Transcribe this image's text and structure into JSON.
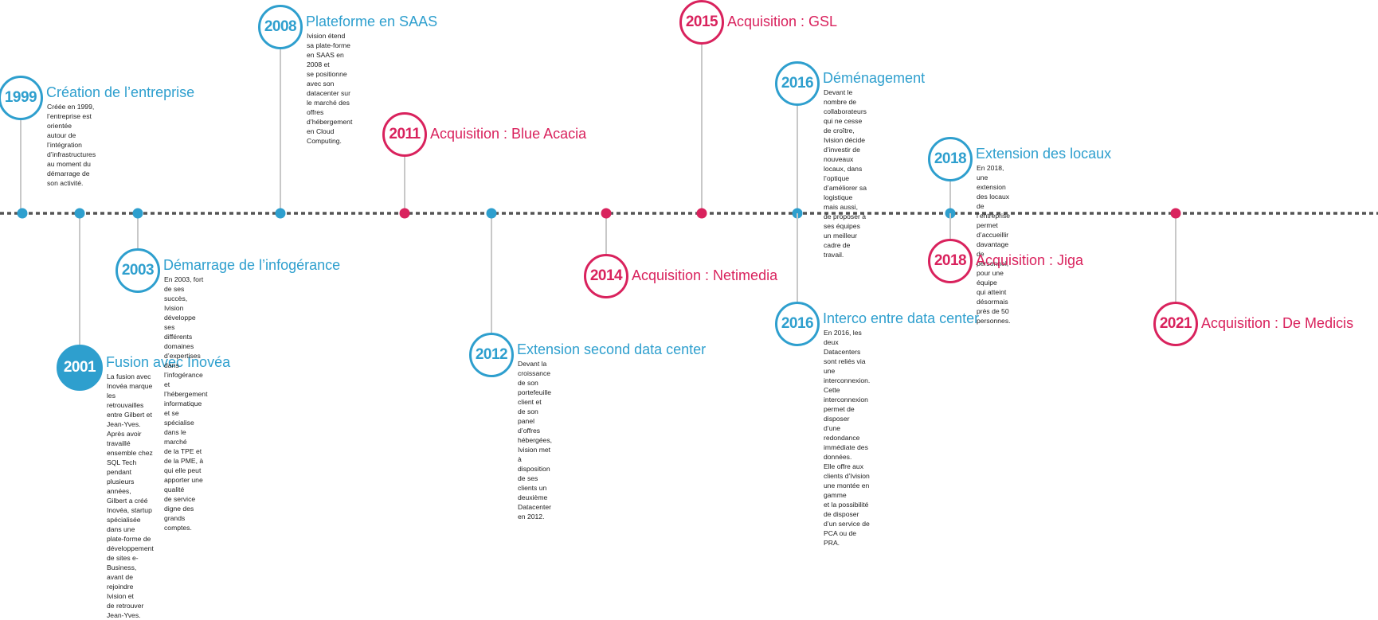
{
  "colors": {
    "blue": "#2e9fce",
    "pink": "#d9225d",
    "line": "#555555",
    "connector": "#c8c8c8"
  },
  "events": [
    {
      "year": "1999",
      "title": "Création de l’entreprise",
      "color": "blue",
      "description": "Créée en 1999, l’entreprise est orientée\nautour de l’intégration d’infrastructures\nau moment du démarrage de son activité."
    },
    {
      "year": "2001",
      "title": "Fusion avec Inovéa",
      "color": "blue",
      "filled": true,
      "description": "La fusion avec Inovéa marque les retrouvailles entre Gilbert et Jean-Yves.\nAprès avoir travaillé ensemble chez SQL Tech pendant plusieurs années,\nGilbert a créé Inovéa, startup spécialisée dans une plate-forme de\ndéveloppement de sites e-Business, avant de rejoindre Ivision et\nde retrouver Jean-Yves."
    },
    {
      "year": "2003",
      "title": "Démarrage de l’infogérance",
      "color": "blue",
      "description": "En 2003, fort de ses succès, Ivision développe ses\ndifférents domaines d’expertises dans l’infogérance et\nl’hébergement informatique et se spécialise dans le marché\nde la TPE et de la PME, à qui elle peut apporter une qualité\nde service digne des grands comptes."
    },
    {
      "year": "2008",
      "title": "Plateforme en SAAS",
      "color": "blue",
      "description": "Ivision étend sa plate-forme en SAAS en 2008 et\nse positionne avec son datacenter sur le marché des\noffres d’hébergement en Cloud Computing."
    },
    {
      "year": "2011",
      "title": "Acquisition : Blue Acacia",
      "color": "pink",
      "description": ""
    },
    {
      "year": "2012",
      "title": "Extension second data center",
      "color": "blue",
      "description": "Devant la croissance de son portefeuille client et\nde son panel d’offres hébergées, Ivision met à disposition\nde ses clients un deuxième Datacenter en 2012."
    },
    {
      "year": "2014",
      "title": "Acquisition : Netimedia",
      "color": "pink",
      "description": ""
    },
    {
      "year": "2015",
      "title": "Acquisition : GSL",
      "color": "pink",
      "description": ""
    },
    {
      "year": "2016",
      "title": "Déménagement",
      "color": "blue",
      "description": "Devant le nombre de collaborateurs qui ne cesse de croître,\nIvision décide d’investir de nouveaux locaux, dans l’optique\nd’améliorer sa logistique mais aussi, de proposer à ses équipes\nun meilleur cadre de travail."
    },
    {
      "year": "2016",
      "title": "Interco entre data center",
      "color": "blue",
      "description": "En 2016, les deux Datacenters sont reliés via une\ninterconnexion. Cette interconnexion permet de disposer\nd’une redondance immédiate des données.\nElle offre aux clients d’Ivision une montée en gamme\net la possibilité de disposer d’un service de\nPCA ou de PRA."
    },
    {
      "year": "2018",
      "title": "Extension des locaux",
      "color": "blue",
      "description": "En 2018, une extension des locaux de l’entreprise permet\nd’accueillir davantage de personnel, pour une équipe\nqui atteint désormais près de 50 personnes."
    },
    {
      "year": "2018",
      "title": "Acquisition : Jiga",
      "color": "pink",
      "description": ""
    },
    {
      "year": "2021",
      "title": "Acquisition : De Medicis",
      "color": "pink",
      "description": ""
    }
  ]
}
